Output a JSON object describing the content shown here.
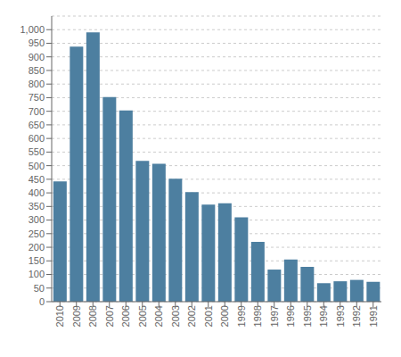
{
  "chart_data": {
    "type": "bar",
    "categories": [
      "2010",
      "2009",
      "2008",
      "2007",
      "2006",
      "2005",
      "2004",
      "2003",
      "2002",
      "2001",
      "2000",
      "1999",
      "1998",
      "1997",
      "1996",
      "1995",
      "1994",
      "1993",
      "1992",
      "1991"
    ],
    "values": [
      442,
      938,
      990,
      752,
      703,
      518,
      507,
      452,
      403,
      357,
      362,
      310,
      220,
      118,
      155,
      128,
      68,
      75,
      80,
      73
    ],
    "color": "#4d7fa0",
    "ylim": [
      0,
      1050
    ],
    "yticks": [
      0,
      50,
      100,
      150,
      200,
      250,
      300,
      350,
      400,
      450,
      500,
      550,
      600,
      650,
      700,
      750,
      800,
      850,
      900,
      950,
      {
        "value": 1000,
        "label": "1,000"
      }
    ],
    "grid": true
  }
}
